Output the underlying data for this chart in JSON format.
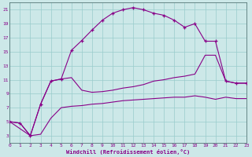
{
  "bg_color": "#cce8e8",
  "line_color": "#880088",
  "grid_color": "#99cccc",
  "xmin": 0,
  "xmax": 23,
  "ymin": 2,
  "ymax": 22,
  "yticks": [
    3,
    5,
    7,
    9,
    11,
    13,
    15,
    17,
    19,
    21
  ],
  "xticks": [
    0,
    1,
    2,
    3,
    4,
    5,
    6,
    7,
    8,
    9,
    10,
    11,
    12,
    13,
    14,
    15,
    16,
    17,
    18,
    19,
    20,
    21,
    22,
    23
  ],
  "xlabel": "Windchill (Refroidissement éolien,°C)",
  "curve_top_x": [
    0,
    1,
    2,
    3,
    4,
    5,
    6,
    7,
    8,
    9,
    10,
    11,
    12,
    13,
    14,
    15,
    16,
    17,
    18,
    19,
    20,
    21,
    22,
    23
  ],
  "curve_top_y": [
    5,
    4.8,
    3.0,
    7.5,
    10.8,
    11.1,
    15.2,
    16.6,
    18.1,
    19.5,
    20.5,
    21.0,
    21.3,
    21.0,
    20.5,
    20.2,
    19.5,
    18.5,
    19.0,
    16.5,
    16.5,
    10.8,
    10.5,
    10.5
  ],
  "curve_mid_x": [
    0,
    2,
    3,
    4,
    5,
    6,
    7,
    8,
    9,
    10,
    11,
    12,
    13,
    14,
    15,
    16,
    17,
    18,
    19,
    20,
    21,
    22,
    23
  ],
  "curve_mid_y": [
    5,
    3.0,
    7.5,
    10.8,
    11.1,
    11.3,
    9.5,
    9.2,
    9.3,
    9.5,
    9.8,
    10.0,
    10.3,
    10.8,
    11.0,
    11.3,
    11.5,
    11.8,
    14.5,
    14.5,
    10.8,
    10.5,
    10.5
  ],
  "curve_bot_x": [
    0,
    1,
    2,
    3,
    4,
    5,
    6,
    7,
    8,
    9,
    10,
    11,
    12,
    13,
    14,
    15,
    16,
    17,
    18,
    19,
    20,
    21,
    22,
    23
  ],
  "curve_bot_y": [
    5,
    4.8,
    3.0,
    3.2,
    5.5,
    7.0,
    7.2,
    7.3,
    7.5,
    7.6,
    7.8,
    8.0,
    8.1,
    8.2,
    8.3,
    8.4,
    8.5,
    8.5,
    8.7,
    8.5,
    8.2,
    8.5,
    8.3,
    8.3
  ]
}
